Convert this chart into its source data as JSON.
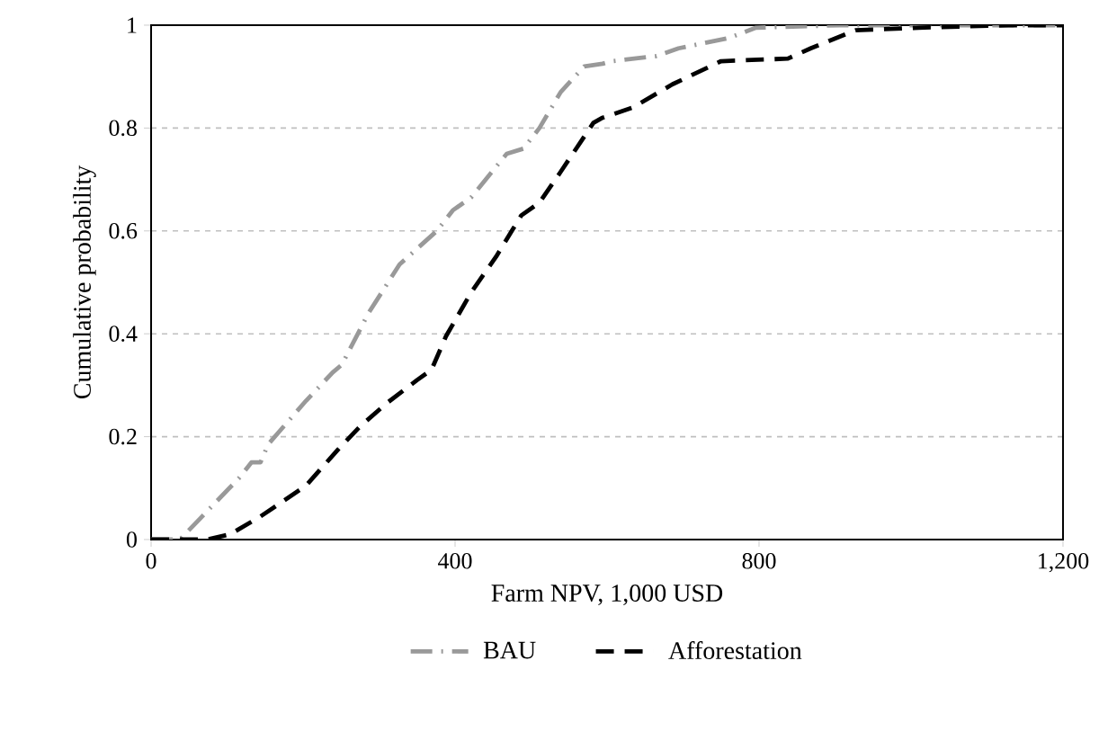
{
  "chart_data": {
    "type": "line",
    "xlabel": "Farm NPV, 1,000 USD",
    "ylabel": "Cumulative probability",
    "xlim": [
      0,
      1200
    ],
    "ylim": [
      0,
      1
    ],
    "xticks": [
      0,
      400,
      800,
      {
        "value": 1200,
        "label": "1,200"
      }
    ],
    "yticks": [
      0,
      0.2,
      0.4,
      0.6,
      0.8,
      1
    ],
    "grid": "y",
    "legend": "bottom",
    "marker": "none",
    "series": [
      {
        "name": "BAU",
        "color": "#999999",
        "line_style": "dashdot",
        "x": [
          0,
          38,
          64,
          116,
          132,
          144,
          154,
          204,
          239,
          251,
          286,
          327,
          376,
          397,
          421,
          468,
          490,
          511,
          539,
          570,
          594,
          606,
          665,
          694,
          760,
          796,
          906,
          1200
        ],
        "values": [
          0,
          0,
          0.04,
          0.12,
          0.15,
          0.15,
          0.185,
          0.27,
          0.325,
          0.34,
          0.44,
          0.535,
          0.6,
          0.64,
          0.665,
          0.75,
          0.76,
          0.8,
          0.87,
          0.92,
          0.925,
          0.93,
          0.94,
          0.955,
          0.975,
          0.995,
          1,
          1
        ]
      },
      {
        "name": "Afforestation",
        "color": "#000000",
        "line_style": "dashed",
        "x": [
          0,
          73,
          104,
          144,
          204,
          246,
          275,
          310,
          350,
          369,
          388,
          421,
          454,
          487,
          511,
          539,
          582,
          594,
          634,
          686,
          750,
          838,
          868,
          927,
          1010,
          1128,
          1200
        ],
        "values": [
          0,
          0,
          0.01,
          0.045,
          0.105,
          0.175,
          0.22,
          0.265,
          0.31,
          0.33,
          0.395,
          0.48,
          0.55,
          0.63,
          0.655,
          0.715,
          0.81,
          0.82,
          0.84,
          0.885,
          0.93,
          0.935,
          0.955,
          0.99,
          0.995,
          1,
          1
        ]
      }
    ]
  }
}
